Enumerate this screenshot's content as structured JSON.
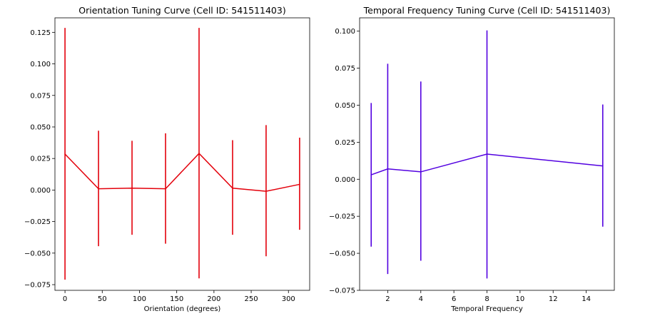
{
  "chart_data": [
    {
      "type": "line",
      "title": "Orientation Tuning Curve (Cell ID: 541511403)",
      "xlabel": "Orientation (degrees)",
      "ylabel": "",
      "xlim": [
        -13.5,
        328.5
      ],
      "ylim": [
        -0.0795,
        0.1365
      ],
      "xticks": [
        0,
        50,
        100,
        150,
        200,
        250,
        300
      ],
      "yticks": [
        -0.075,
        -0.05,
        -0.025,
        0.0,
        0.025,
        0.05,
        0.075,
        0.1,
        0.125
      ],
      "ytick_labels": [
        "−0.075",
        "−0.050",
        "−0.025",
        "0.000",
        "0.025",
        "0.050",
        "0.075",
        "0.100",
        "0.125"
      ],
      "grid": false,
      "color": "#e3000b",
      "series": [
        {
          "x": [
            0,
            45,
            90,
            135,
            180,
            225,
            270,
            315
          ],
          "y": [
            0.0285,
            0.001,
            0.0015,
            0.001,
            0.029,
            0.0015,
            -0.001,
            0.0045
          ],
          "yerr_low": [
            -0.071,
            -0.0445,
            -0.0355,
            -0.0425,
            -0.07,
            -0.0355,
            -0.0525,
            -0.0315
          ],
          "yerr_high": [
            0.1285,
            0.047,
            0.039,
            0.045,
            0.1285,
            0.0395,
            0.0515,
            0.0415
          ]
        }
      ]
    },
    {
      "type": "line",
      "title": "Temporal Frequency Tuning Curve (Cell ID: 541511403)",
      "xlabel": "Temporal Frequency",
      "ylabel": "",
      "xlim": [
        0.3,
        15.7
      ],
      "ylim": [
        -0.075,
        0.109
      ],
      "xticks": [
        2,
        4,
        6,
        8,
        10,
        12,
        14
      ],
      "yticks": [
        -0.075,
        -0.05,
        -0.025,
        0.0,
        0.025,
        0.05,
        0.075,
        0.1
      ],
      "ytick_labels": [
        "−0.075",
        "−0.050",
        "−0.025",
        "0.000",
        "0.025",
        "0.050",
        "0.075",
        "0.100"
      ],
      "grid": false,
      "color": "#5200e0",
      "series": [
        {
          "x": [
            1,
            2,
            4,
            8,
            15
          ],
          "y": [
            0.003,
            0.007,
            0.005,
            0.017,
            0.009
          ],
          "yerr_low": [
            -0.0455,
            -0.064,
            -0.055,
            -0.067,
            -0.032
          ],
          "yerr_high": [
            0.0515,
            0.078,
            0.066,
            0.1005,
            0.0505
          ]
        }
      ]
    }
  ]
}
